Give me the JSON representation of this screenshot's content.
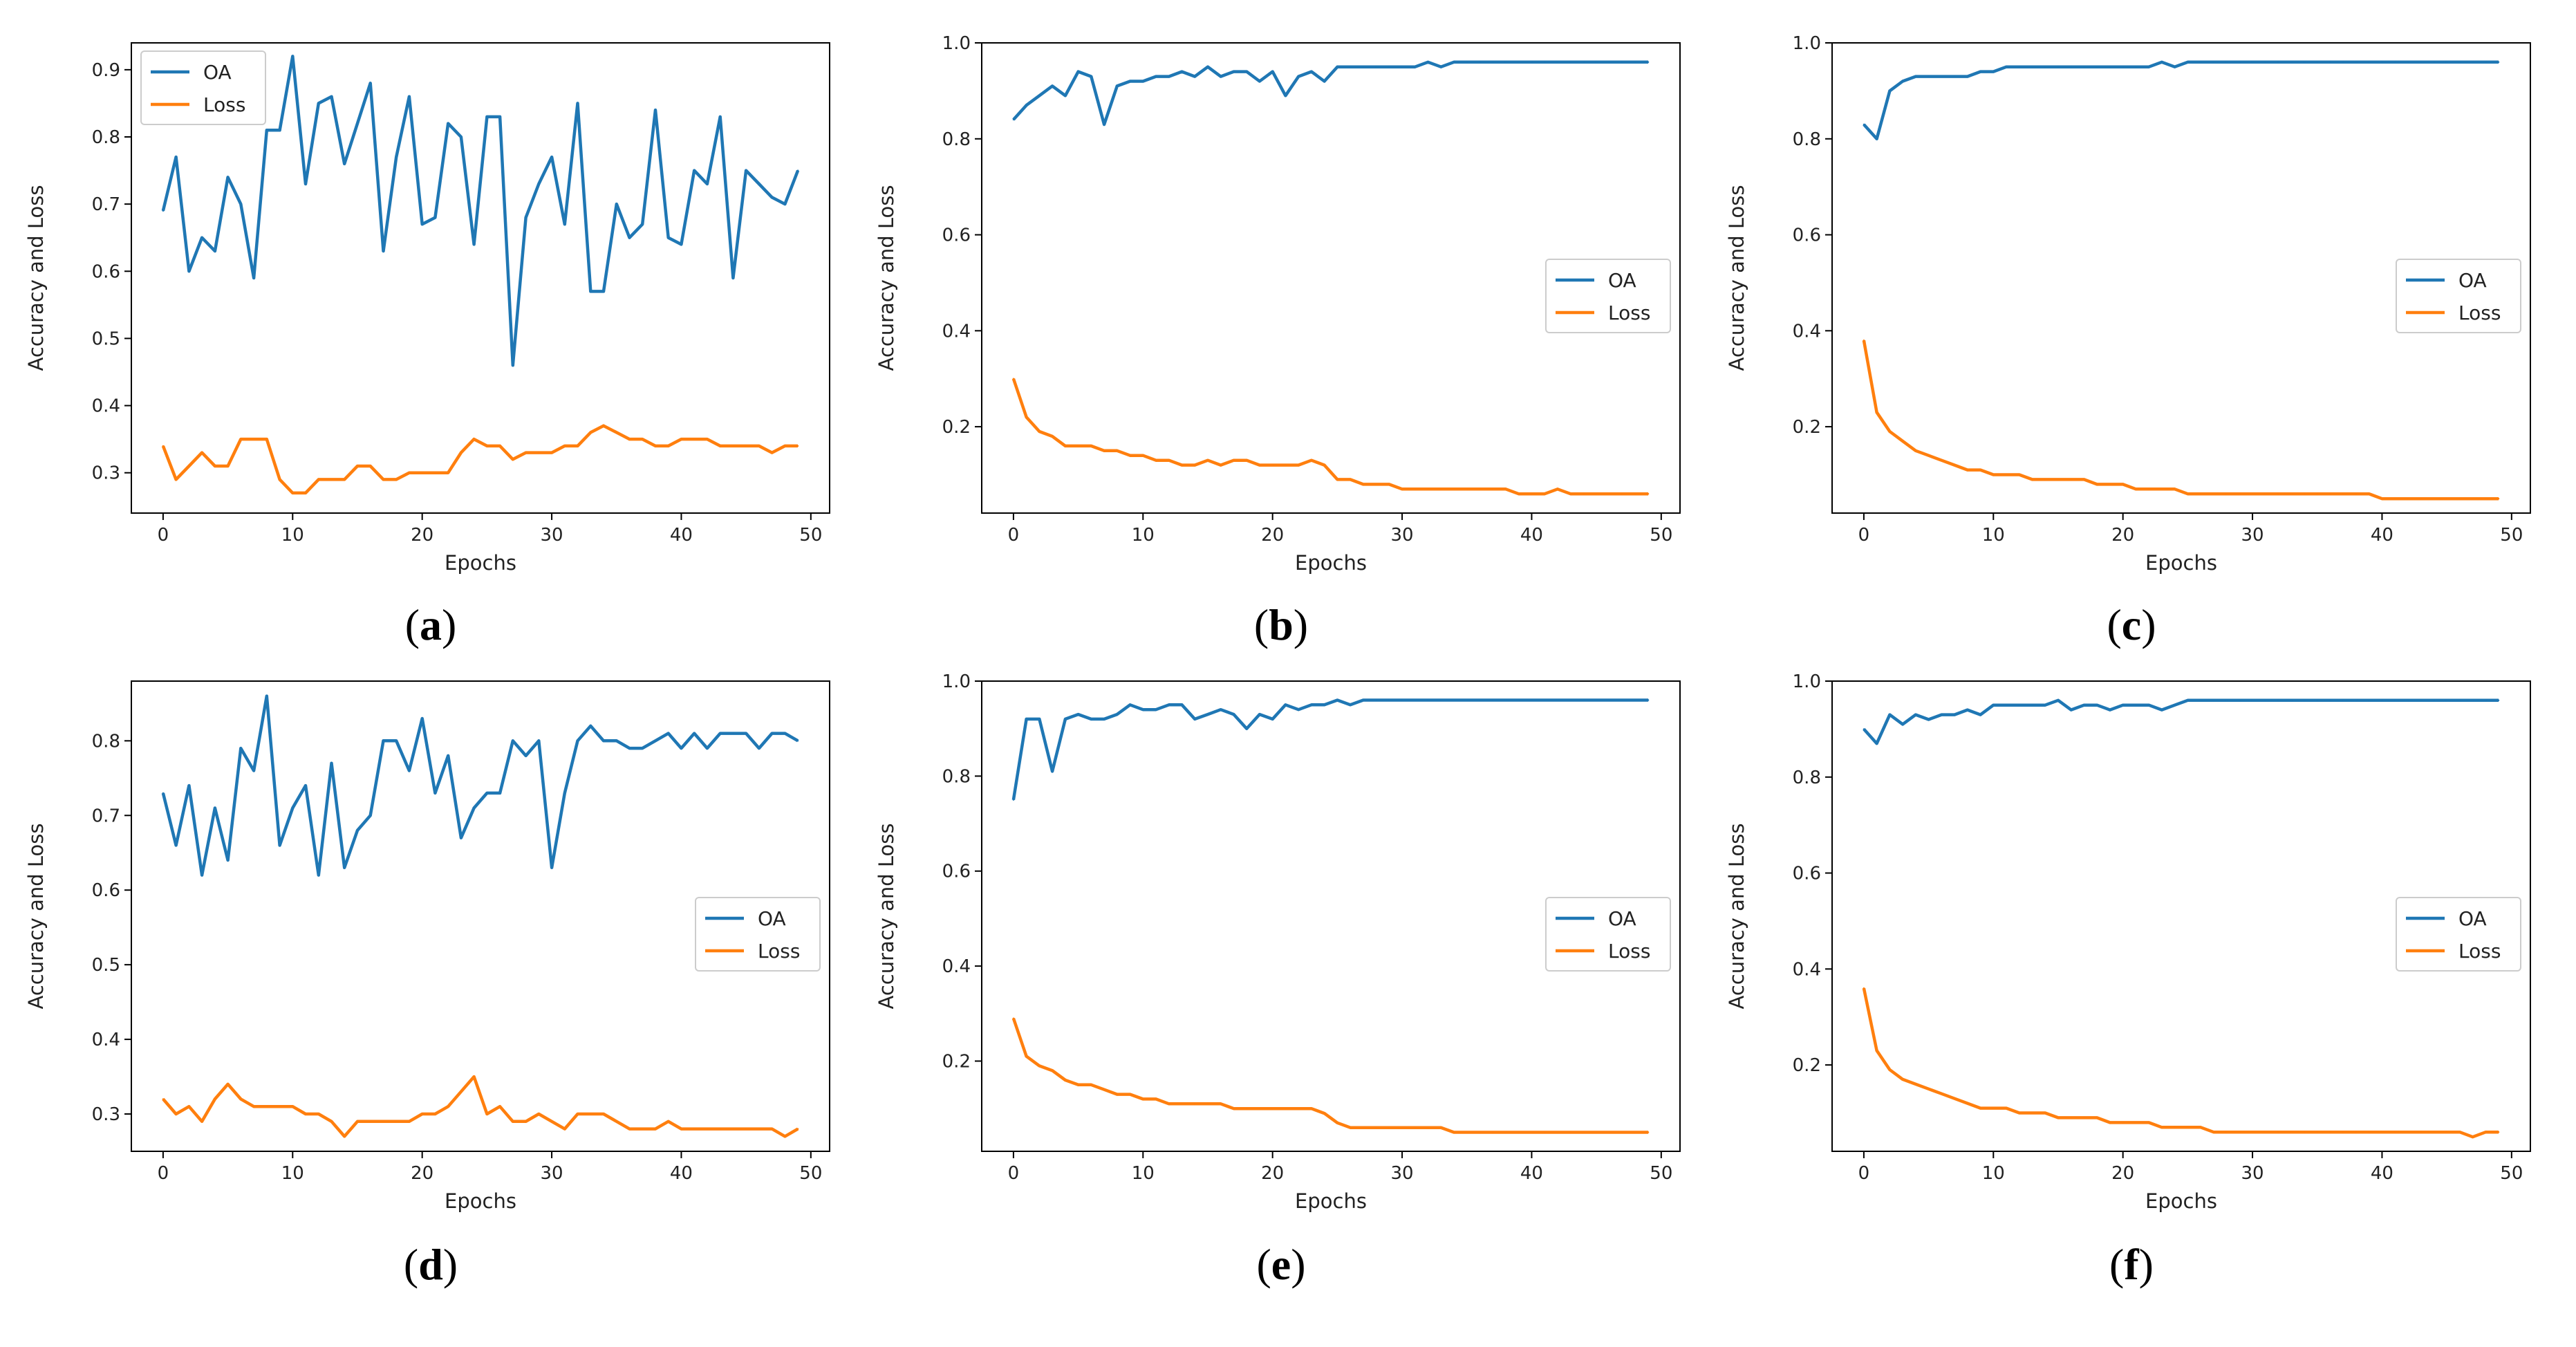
{
  "chart_data": [
    {
      "id": "a",
      "caption_letter": "a",
      "type": "line",
      "xlabel": "Epochs",
      "ylabel": "Accuracy and Loss",
      "xlim": [
        -2.45,
        51.45
      ],
      "ylim": [
        0.24,
        0.94
      ],
      "xticks": [
        0,
        10,
        20,
        30,
        40,
        50
      ],
      "yticks": [
        0.3,
        0.4,
        0.5,
        0.6,
        0.7,
        0.8,
        0.9
      ],
      "legend_loc": "top-left",
      "x": [
        0,
        1,
        2,
        3,
        4,
        5,
        6,
        7,
        8,
        9,
        10,
        11,
        12,
        13,
        14,
        15,
        16,
        17,
        18,
        19,
        20,
        21,
        22,
        23,
        24,
        25,
        26,
        27,
        28,
        29,
        30,
        31,
        32,
        33,
        34,
        35,
        36,
        37,
        38,
        39,
        40,
        41,
        42,
        43,
        44,
        45,
        46,
        47,
        48,
        49
      ],
      "series": [
        {
          "name": "OA",
          "color": "#1f77b4",
          "values": [
            0.69,
            0.77,
            0.6,
            0.65,
            0.63,
            0.74,
            0.7,
            0.59,
            0.81,
            0.81,
            0.92,
            0.73,
            0.85,
            0.86,
            0.76,
            0.82,
            0.88,
            0.63,
            0.77,
            0.86,
            0.67,
            0.68,
            0.82,
            0.8,
            0.64,
            0.83,
            0.83,
            0.46,
            0.68,
            0.73,
            0.77,
            0.67,
            0.85,
            0.57,
            0.57,
            0.7,
            0.65,
            0.67,
            0.84,
            0.65,
            0.64,
            0.75,
            0.73,
            0.83,
            0.59,
            0.75,
            0.73,
            0.71,
            0.7,
            0.75
          ]
        },
        {
          "name": "Loss",
          "color": "#ff7f0e",
          "values": [
            0.34,
            0.29,
            0.31,
            0.33,
            0.31,
            0.31,
            0.35,
            0.35,
            0.35,
            0.29,
            0.27,
            0.27,
            0.29,
            0.29,
            0.29,
            0.31,
            0.31,
            0.29,
            0.29,
            0.3,
            0.3,
            0.3,
            0.3,
            0.33,
            0.35,
            0.34,
            0.34,
            0.32,
            0.33,
            0.33,
            0.33,
            0.34,
            0.34,
            0.36,
            0.37,
            0.36,
            0.35,
            0.35,
            0.34,
            0.34,
            0.35,
            0.35,
            0.35,
            0.34,
            0.34,
            0.34,
            0.34,
            0.33,
            0.34,
            0.34
          ]
        }
      ]
    },
    {
      "id": "b",
      "caption_letter": "b",
      "type": "line",
      "xlabel": "Epochs",
      "ylabel": "Accuracy and Loss",
      "xlim": [
        -2.45,
        51.45
      ],
      "ylim": [
        0.02,
        1.0
      ],
      "xticks": [
        0,
        10,
        20,
        30,
        40,
        50
      ],
      "yticks": [
        0.2,
        0.4,
        0.6,
        0.8,
        1.0
      ],
      "legend_loc": "center-right",
      "x": [
        0,
        1,
        2,
        3,
        4,
        5,
        6,
        7,
        8,
        9,
        10,
        11,
        12,
        13,
        14,
        15,
        16,
        17,
        18,
        19,
        20,
        21,
        22,
        23,
        24,
        25,
        26,
        27,
        28,
        29,
        30,
        31,
        32,
        33,
        34,
        35,
        36,
        37,
        38,
        39,
        40,
        41,
        42,
        43,
        44,
        45,
        46,
        47,
        48,
        49
      ],
      "series": [
        {
          "name": "OA",
          "color": "#1f77b4",
          "values": [
            0.84,
            0.87,
            0.89,
            0.91,
            0.89,
            0.94,
            0.93,
            0.83,
            0.91,
            0.92,
            0.92,
            0.93,
            0.93,
            0.94,
            0.93,
            0.95,
            0.93,
            0.94,
            0.94,
            0.92,
            0.94,
            0.89,
            0.93,
            0.94,
            0.92,
            0.95,
            0.95,
            0.95,
            0.95,
            0.95,
            0.95,
            0.95,
            0.96,
            0.95,
            0.96,
            0.96,
            0.96,
            0.96,
            0.96,
            0.96,
            0.96,
            0.96,
            0.96,
            0.96,
            0.96,
            0.96,
            0.96,
            0.96,
            0.96,
            0.96
          ]
        },
        {
          "name": "Loss",
          "color": "#ff7f0e",
          "values": [
            0.3,
            0.22,
            0.19,
            0.18,
            0.16,
            0.16,
            0.16,
            0.15,
            0.15,
            0.14,
            0.14,
            0.13,
            0.13,
            0.12,
            0.12,
            0.13,
            0.12,
            0.13,
            0.13,
            0.12,
            0.12,
            0.12,
            0.12,
            0.13,
            0.12,
            0.09,
            0.09,
            0.08,
            0.08,
            0.08,
            0.07,
            0.07,
            0.07,
            0.07,
            0.07,
            0.07,
            0.07,
            0.07,
            0.07,
            0.06,
            0.06,
            0.06,
            0.07,
            0.06,
            0.06,
            0.06,
            0.06,
            0.06,
            0.06,
            0.06
          ]
        }
      ]
    },
    {
      "id": "c",
      "caption_letter": "c",
      "type": "line",
      "xlabel": "Epochs",
      "ylabel": "Accuracy and Loss",
      "xlim": [
        -2.45,
        51.45
      ],
      "ylim": [
        0.02,
        1.0
      ],
      "xticks": [
        0,
        10,
        20,
        30,
        40,
        50
      ],
      "yticks": [
        0.2,
        0.4,
        0.6,
        0.8,
        1.0
      ],
      "legend_loc": "center-right",
      "x": [
        0,
        1,
        2,
        3,
        4,
        5,
        6,
        7,
        8,
        9,
        10,
        11,
        12,
        13,
        14,
        15,
        16,
        17,
        18,
        19,
        20,
        21,
        22,
        23,
        24,
        25,
        26,
        27,
        28,
        29,
        30,
        31,
        32,
        33,
        34,
        35,
        36,
        37,
        38,
        39,
        40,
        41,
        42,
        43,
        44,
        45,
        46,
        47,
        48,
        49
      ],
      "series": [
        {
          "name": "OA",
          "color": "#1f77b4",
          "values": [
            0.83,
            0.8,
            0.9,
            0.92,
            0.93,
            0.93,
            0.93,
            0.93,
            0.93,
            0.94,
            0.94,
            0.95,
            0.95,
            0.95,
            0.95,
            0.95,
            0.95,
            0.95,
            0.95,
            0.95,
            0.95,
            0.95,
            0.95,
            0.96,
            0.95,
            0.96,
            0.96,
            0.96,
            0.96,
            0.96,
            0.96,
            0.96,
            0.96,
            0.96,
            0.96,
            0.96,
            0.96,
            0.96,
            0.96,
            0.96,
            0.96,
            0.96,
            0.96,
            0.96,
            0.96,
            0.96,
            0.96,
            0.96,
            0.96,
            0.96
          ]
        },
        {
          "name": "Loss",
          "color": "#ff7f0e",
          "values": [
            0.38,
            0.23,
            0.19,
            0.17,
            0.15,
            0.14,
            0.13,
            0.12,
            0.11,
            0.11,
            0.1,
            0.1,
            0.1,
            0.09,
            0.09,
            0.09,
            0.09,
            0.09,
            0.08,
            0.08,
            0.08,
            0.07,
            0.07,
            0.07,
            0.07,
            0.06,
            0.06,
            0.06,
            0.06,
            0.06,
            0.06,
            0.06,
            0.06,
            0.06,
            0.06,
            0.06,
            0.06,
            0.06,
            0.06,
            0.06,
            0.05,
            0.05,
            0.05,
            0.05,
            0.05,
            0.05,
            0.05,
            0.05,
            0.05,
            0.05
          ]
        }
      ]
    },
    {
      "id": "d",
      "caption_letter": "d",
      "type": "line",
      "xlabel": "Epochs",
      "ylabel": "Accuracy and Loss",
      "xlim": [
        -2.45,
        51.45
      ],
      "ylim": [
        0.25,
        0.88
      ],
      "xticks": [
        0,
        10,
        20,
        30,
        40,
        50
      ],
      "yticks": [
        0.3,
        0.4,
        0.5,
        0.6,
        0.7,
        0.8
      ],
      "legend_loc": "center-right",
      "x": [
        0,
        1,
        2,
        3,
        4,
        5,
        6,
        7,
        8,
        9,
        10,
        11,
        12,
        13,
        14,
        15,
        16,
        17,
        18,
        19,
        20,
        21,
        22,
        23,
        24,
        25,
        26,
        27,
        28,
        29,
        30,
        31,
        32,
        33,
        34,
        35,
        36,
        37,
        38,
        39,
        40,
        41,
        42,
        43,
        44,
        45,
        46,
        47,
        48,
        49
      ],
      "series": [
        {
          "name": "OA",
          "color": "#1f77b4",
          "values": [
            0.73,
            0.66,
            0.74,
            0.62,
            0.71,
            0.64,
            0.79,
            0.76,
            0.86,
            0.66,
            0.71,
            0.74,
            0.62,
            0.77,
            0.63,
            0.68,
            0.7,
            0.8,
            0.8,
            0.76,
            0.83,
            0.73,
            0.78,
            0.67,
            0.71,
            0.73,
            0.73,
            0.8,
            0.78,
            0.8,
            0.63,
            0.73,
            0.8,
            0.82,
            0.8,
            0.8,
            0.79,
            0.79,
            0.8,
            0.81,
            0.79,
            0.81,
            0.79,
            0.81,
            0.81,
            0.81,
            0.79,
            0.81,
            0.81,
            0.8
          ]
        },
        {
          "name": "Loss",
          "color": "#ff7f0e",
          "values": [
            0.32,
            0.3,
            0.31,
            0.29,
            0.32,
            0.34,
            0.32,
            0.31,
            0.31,
            0.31,
            0.31,
            0.3,
            0.3,
            0.29,
            0.27,
            0.29,
            0.29,
            0.29,
            0.29,
            0.29,
            0.3,
            0.3,
            0.31,
            0.33,
            0.35,
            0.3,
            0.31,
            0.29,
            0.29,
            0.3,
            0.29,
            0.28,
            0.3,
            0.3,
            0.3,
            0.29,
            0.28,
            0.28,
            0.28,
            0.29,
            0.28,
            0.28,
            0.28,
            0.28,
            0.28,
            0.28,
            0.28,
            0.28,
            0.27,
            0.28
          ]
        }
      ]
    },
    {
      "id": "e",
      "caption_letter": "e",
      "type": "line",
      "xlabel": "Epochs",
      "ylabel": "Accuracy and Loss",
      "xlim": [
        -2.45,
        51.45
      ],
      "ylim": [
        0.01,
        1.0
      ],
      "xticks": [
        0,
        10,
        20,
        30,
        40,
        50
      ],
      "yticks": [
        0.2,
        0.4,
        0.6,
        0.8,
        1.0
      ],
      "legend_loc": "center-right",
      "x": [
        0,
        1,
        2,
        3,
        4,
        5,
        6,
        7,
        8,
        9,
        10,
        11,
        12,
        13,
        14,
        15,
        16,
        17,
        18,
        19,
        20,
        21,
        22,
        23,
        24,
        25,
        26,
        27,
        28,
        29,
        30,
        31,
        32,
        33,
        34,
        35,
        36,
        37,
        38,
        39,
        40,
        41,
        42,
        43,
        44,
        45,
        46,
        47,
        48,
        49
      ],
      "series": [
        {
          "name": "OA",
          "color": "#1f77b4",
          "values": [
            0.75,
            0.92,
            0.92,
            0.81,
            0.92,
            0.93,
            0.92,
            0.92,
            0.93,
            0.95,
            0.94,
            0.94,
            0.95,
            0.95,
            0.92,
            0.93,
            0.94,
            0.93,
            0.9,
            0.93,
            0.92,
            0.95,
            0.94,
            0.95,
            0.95,
            0.96,
            0.95,
            0.96,
            0.96,
            0.96,
            0.96,
            0.96,
            0.96,
            0.96,
            0.96,
            0.96,
            0.96,
            0.96,
            0.96,
            0.96,
            0.96,
            0.96,
            0.96,
            0.96,
            0.96,
            0.96,
            0.96,
            0.96,
            0.96,
            0.96
          ]
        },
        {
          "name": "Loss",
          "color": "#ff7f0e",
          "values": [
            0.29,
            0.21,
            0.19,
            0.18,
            0.16,
            0.15,
            0.15,
            0.14,
            0.13,
            0.13,
            0.12,
            0.12,
            0.11,
            0.11,
            0.11,
            0.11,
            0.11,
            0.1,
            0.1,
            0.1,
            0.1,
            0.1,
            0.1,
            0.1,
            0.09,
            0.07,
            0.06,
            0.06,
            0.06,
            0.06,
            0.06,
            0.06,
            0.06,
            0.06,
            0.05,
            0.05,
            0.05,
            0.05,
            0.05,
            0.05,
            0.05,
            0.05,
            0.05,
            0.05,
            0.05,
            0.05,
            0.05,
            0.05,
            0.05,
            0.05
          ]
        }
      ]
    },
    {
      "id": "f",
      "caption_letter": "f",
      "type": "line",
      "xlabel": "Epochs",
      "ylabel": "Accuracy and Loss",
      "xlim": [
        -2.45,
        51.45
      ],
      "ylim": [
        0.02,
        1.0
      ],
      "xticks": [
        0,
        10,
        20,
        30,
        40,
        50
      ],
      "yticks": [
        0.2,
        0.4,
        0.6,
        0.8,
        1.0
      ],
      "legend_loc": "center-right",
      "x": [
        0,
        1,
        2,
        3,
        4,
        5,
        6,
        7,
        8,
        9,
        10,
        11,
        12,
        13,
        14,
        15,
        16,
        17,
        18,
        19,
        20,
        21,
        22,
        23,
        24,
        25,
        26,
        27,
        28,
        29,
        30,
        31,
        32,
        33,
        34,
        35,
        36,
        37,
        38,
        39,
        40,
        41,
        42,
        43,
        44,
        45,
        46,
        47,
        48,
        49
      ],
      "series": [
        {
          "name": "OA",
          "color": "#1f77b4",
          "values": [
            0.9,
            0.87,
            0.93,
            0.91,
            0.93,
            0.92,
            0.93,
            0.93,
            0.94,
            0.93,
            0.95,
            0.95,
            0.95,
            0.95,
            0.95,
            0.96,
            0.94,
            0.95,
            0.95,
            0.94,
            0.95,
            0.95,
            0.95,
            0.94,
            0.95,
            0.96,
            0.96,
            0.96,
            0.96,
            0.96,
            0.96,
            0.96,
            0.96,
            0.96,
            0.96,
            0.96,
            0.96,
            0.96,
            0.96,
            0.96,
            0.96,
            0.96,
            0.96,
            0.96,
            0.96,
            0.96,
            0.96,
            0.96,
            0.96,
            0.96
          ]
        },
        {
          "name": "Loss",
          "color": "#ff7f0e",
          "values": [
            0.36,
            0.23,
            0.19,
            0.17,
            0.16,
            0.15,
            0.14,
            0.13,
            0.12,
            0.11,
            0.11,
            0.11,
            0.1,
            0.1,
            0.1,
            0.09,
            0.09,
            0.09,
            0.09,
            0.08,
            0.08,
            0.08,
            0.08,
            0.07,
            0.07,
            0.07,
            0.07,
            0.06,
            0.06,
            0.06,
            0.06,
            0.06,
            0.06,
            0.06,
            0.06,
            0.06,
            0.06,
            0.06,
            0.06,
            0.06,
            0.06,
            0.06,
            0.06,
            0.06,
            0.06,
            0.06,
            0.06,
            0.05,
            0.06,
            0.06
          ]
        }
      ]
    }
  ]
}
